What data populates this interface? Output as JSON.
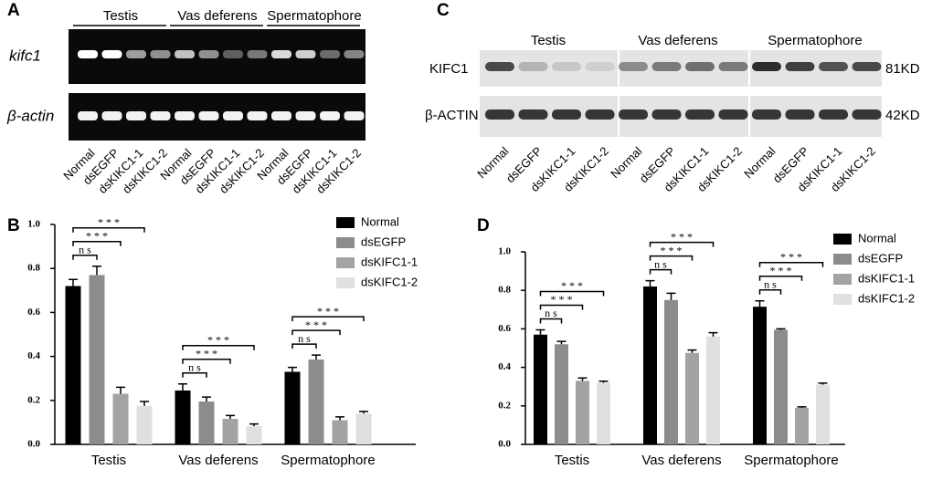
{
  "panels": {
    "A": {
      "label": "A",
      "tissues": [
        "Testis",
        "Vas deferens",
        "Spermatophore"
      ],
      "rows": [
        "kifc1",
        "β-actin"
      ],
      "lanes": [
        "Normal",
        "dsEGFP",
        "dsKIKC1-1",
        "dsKIKC1-2"
      ]
    },
    "C": {
      "label": "C",
      "tissues": [
        "Testis",
        "Vas deferens",
        "Spermatophore"
      ],
      "rows": [
        "KIFC1",
        "β-ACTIN"
      ],
      "sizes": [
        "81KD",
        "42KD"
      ],
      "lanes": [
        "Normal",
        "dsEGFP",
        "dsKIKC1-1",
        "dsKIKC1-2"
      ]
    }
  },
  "chart_data": [
    {
      "type": "bar",
      "panel": "B",
      "categories": [
        "Testis",
        "Vas deferens",
        "Spermatophore"
      ],
      "series": [
        {
          "name": "Normal",
          "color": "#000000",
          "values": [
            0.72,
            0.245,
            0.33
          ],
          "errors": [
            0.03,
            0.03,
            0.02
          ]
        },
        {
          "name": "dsEGFP",
          "color": "#8c8c8c",
          "values": [
            0.77,
            0.195,
            0.386
          ],
          "errors": [
            0.04,
            0.02,
            0.02
          ]
        },
        {
          "name": "dsKIFC1-1",
          "color": "#a3a3a3",
          "values": [
            0.23,
            0.116,
            0.11
          ],
          "errors": [
            0.03,
            0.015,
            0.015
          ]
        },
        {
          "name": "dsKIFC1-2",
          "color": "#e0e0e0",
          "values": [
            0.175,
            0.083,
            0.14
          ],
          "errors": [
            0.02,
            0.01,
            0.01
          ]
        }
      ],
      "ylim": [
        0,
        1
      ],
      "yticks": [
        {
          "value": 0,
          "label": "0.0"
        },
        0.2,
        0.4,
        0.6,
        0.8,
        {
          "value": 1,
          "label": "1.0"
        }
      ],
      "legend": "upper right",
      "annotations": [
        {
          "category": 0,
          "from": 0,
          "to": 1,
          "text": "n s"
        },
        {
          "category": 0,
          "from": 0,
          "to": 2,
          "text": "* * *"
        },
        {
          "category": 0,
          "from": 0,
          "to": 3,
          "text": "* * *"
        },
        {
          "category": 1,
          "from": 0,
          "to": 1,
          "text": "n s"
        },
        {
          "category": 1,
          "from": 0,
          "to": 2,
          "text": "* * *"
        },
        {
          "category": 1,
          "from": 0,
          "to": 3,
          "text": "* * *"
        },
        {
          "category": 2,
          "from": 0,
          "to": 1,
          "text": "n s"
        },
        {
          "category": 2,
          "from": 0,
          "to": 2,
          "text": "* * *"
        },
        {
          "category": 2,
          "from": 0,
          "to": 3,
          "text": "* * *"
        }
      ]
    },
    {
      "type": "bar",
      "panel": "D",
      "categories": [
        "Testis",
        "Vas deferens",
        "Spermatophore"
      ],
      "series": [
        {
          "name": "Normal",
          "color": "#000000",
          "values": [
            0.57,
            0.82,
            0.715
          ],
          "errors": [
            0.025,
            0.03,
            0.03
          ]
        },
        {
          "name": "dsEGFP",
          "color": "#8c8c8c",
          "values": [
            0.52,
            0.75,
            0.595
          ],
          "errors": [
            0.015,
            0.035,
            0.005
          ]
        },
        {
          "name": "dsKIFC1-1",
          "color": "#a3a3a3",
          "values": [
            0.33,
            0.475,
            0.19
          ],
          "errors": [
            0.015,
            0.015,
            0.005
          ]
        },
        {
          "name": "dsKIFC1-2",
          "color": "#e0e0e0",
          "values": [
            0.32,
            0.56,
            0.31
          ],
          "errors": [
            0.008,
            0.02,
            0.008
          ]
        }
      ],
      "ylim": [
        0,
        1
      ],
      "yticks": [
        {
          "value": 0,
          "label": "0.0"
        },
        0.2,
        0.4,
        0.6,
        0.8,
        {
          "value": 1,
          "label": "1.0"
        }
      ],
      "legend": "upper right",
      "annotations": [
        {
          "category": 0,
          "from": 0,
          "to": 1,
          "text": "n s"
        },
        {
          "category": 0,
          "from": 0,
          "to": 2,
          "text": "* * *"
        },
        {
          "category": 0,
          "from": 0,
          "to": 3,
          "text": "* * *"
        },
        {
          "category": 1,
          "from": 0,
          "to": 1,
          "text": "n s"
        },
        {
          "category": 1,
          "from": 0,
          "to": 2,
          "text": "* * *"
        },
        {
          "category": 1,
          "from": 0,
          "to": 3,
          "text": "* * *"
        },
        {
          "category": 2,
          "from": 0,
          "to": 1,
          "text": "n s"
        },
        {
          "category": 2,
          "from": 0,
          "to": 2,
          "text": "* * *"
        },
        {
          "category": 2,
          "from": 0,
          "to": 3,
          "text": "* * *"
        }
      ]
    }
  ]
}
